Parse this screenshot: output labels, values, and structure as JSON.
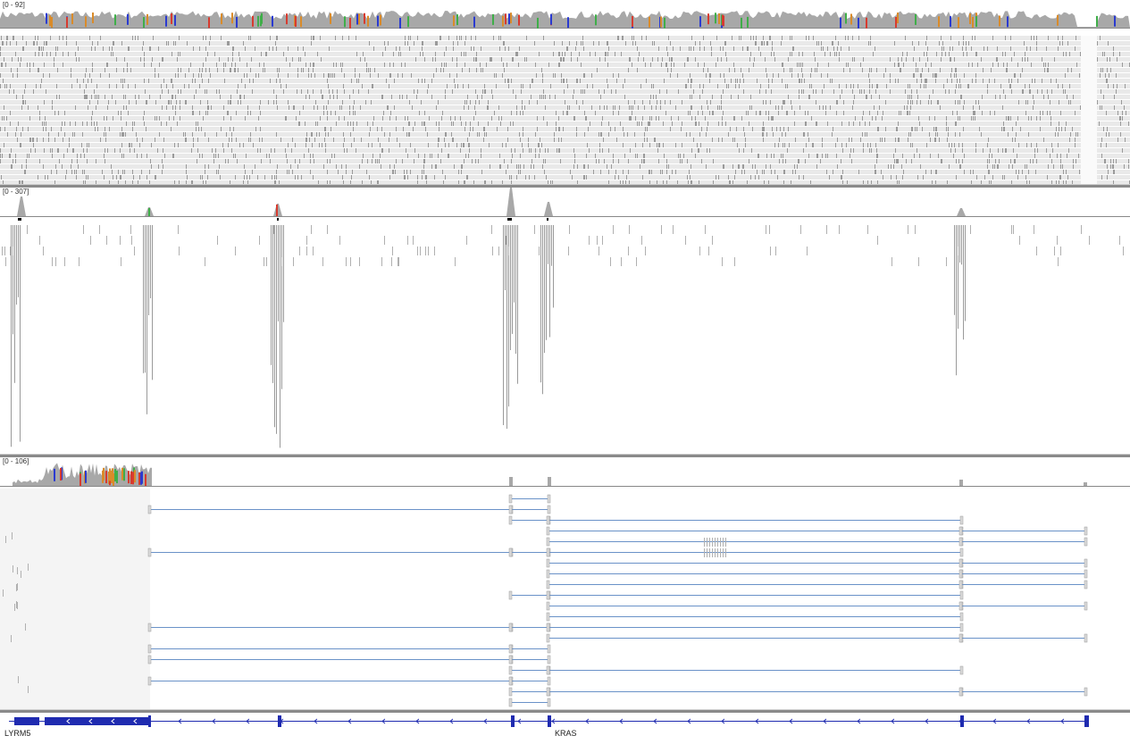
{
  "tracks": [
    {
      "id": "track1",
      "coverage_range": "[0 - 92]"
    },
    {
      "id": "track2",
      "coverage_range": "[0 - 307]"
    },
    {
      "id": "track3",
      "coverage_range": "[0 - 106]"
    }
  ],
  "genes": [
    {
      "name": "LYRM5"
    },
    {
      "name": "KRAS"
    }
  ],
  "colors": {
    "coverage_gray": "#a8a8a8",
    "read_fill": "#e9e9e9",
    "read_edge": "#9a9a9a",
    "splice_line": "#6a92c8",
    "gene_blue": "#1f2bb0",
    "mismatch_red": "#d73b2f",
    "mismatch_green": "#3fae49",
    "mismatch_blue": "#2a3ad0",
    "mismatch_orange": "#d98b2a"
  }
}
